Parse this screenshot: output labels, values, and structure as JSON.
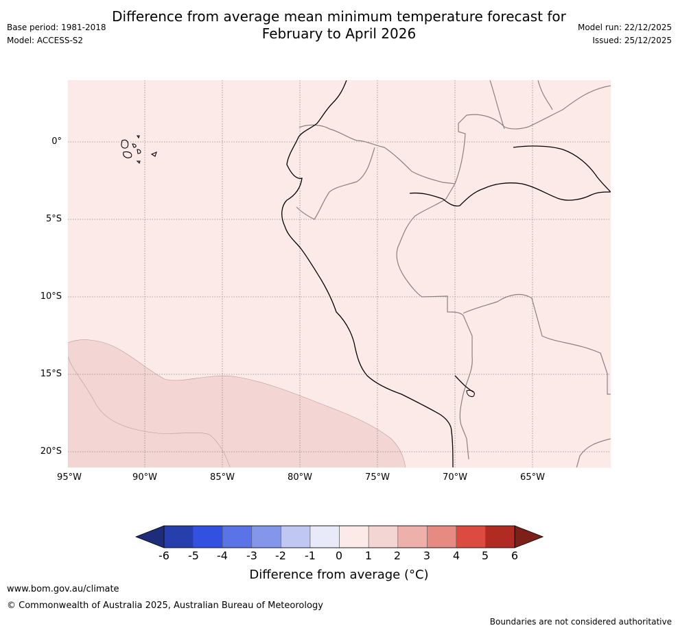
{
  "title": {
    "line1": "Difference from average mean minimum temperature forecast for",
    "line2": "February to April 2026"
  },
  "meta": {
    "base_period": "Base period: 1981-2018",
    "model": "Model: ACCESS-S2",
    "model_run": "Model run: 22/12/2025",
    "issued": "Issued: 25/12/2025"
  },
  "map": {
    "lat_labels": [
      "0°",
      "5°S",
      "10°S",
      "15°S",
      "20°S"
    ],
    "lon_labels": [
      "95°W",
      "90°W",
      "85°W",
      "80°W",
      "75°W",
      "70°W",
      "65°W"
    ],
    "colors": {
      "ocean_fill": "#fbeae8",
      "anomaly_1_2": "#f3d6d3",
      "coast": "#000000",
      "borders": "#8a7f7f",
      "grid": "#888888"
    }
  },
  "colorbar": {
    "ticks": [
      "-6",
      "-5",
      "-4",
      "-3",
      "-2",
      "-1",
      "0",
      "1",
      "2",
      "3",
      "4",
      "5",
      "6"
    ],
    "colors": [
      "#1e2d7a",
      "#263fad",
      "#3351e0",
      "#5a73e6",
      "#8496ea",
      "#c0c7f2",
      "#e8eafa",
      "#fbeae8",
      "#f3d6d3",
      "#eeb0aa",
      "#e68a82",
      "#dc4b40",
      "#b02b22",
      "#7d2019"
    ],
    "label": "Difference from average (°C)"
  },
  "footer": {
    "url": "www.bom.gov.au/climate",
    "copyright": "© Commonwealth of Australia 2025, Australian Bureau of Meteorology",
    "disclaimer": "Boundaries are not considered authoritative"
  }
}
